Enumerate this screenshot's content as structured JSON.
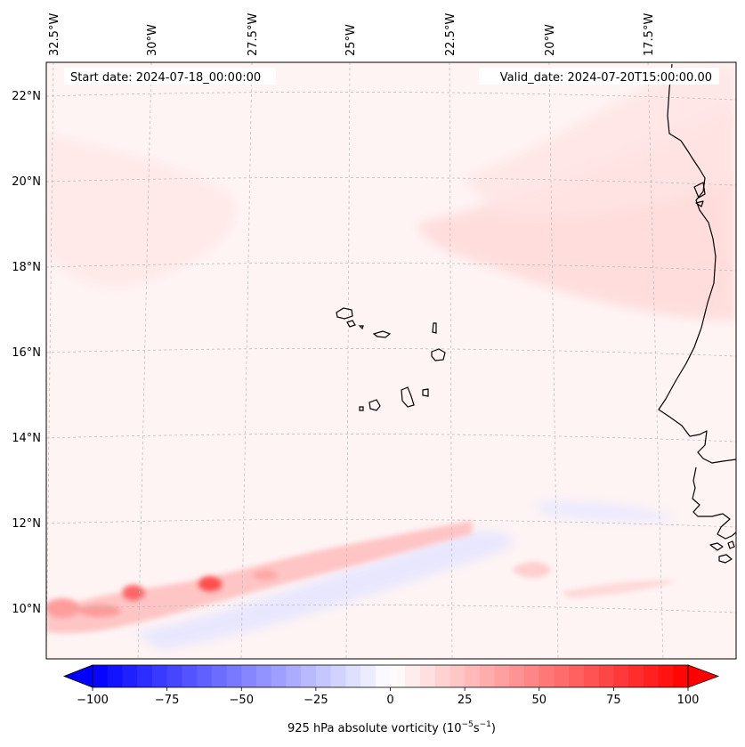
{
  "header": {
    "start_date": "Start date: 2024-07-18_00:00:00",
    "valid_date": "Valid_date: 2024-07-20T15:00:00.00"
  },
  "map": {
    "extent": {
      "lon": [
        -33,
        -15.7
      ],
      "lat": [
        8.9,
        22.8
      ]
    },
    "lon_labels": [
      "32.5°W",
      "30°W",
      "27.5°W",
      "25°W",
      "22.5°W",
      "20°W",
      "17.5°W"
    ],
    "lat_labels": [
      "22°N",
      "20°N",
      "18°N",
      "16°N",
      "14°N",
      "12°N",
      "10°N"
    ],
    "gridlines": true
  },
  "colorbar": {
    "ticks": [
      "−100",
      "−75",
      "−50",
      "−25",
      "0",
      "25",
      "50",
      "75",
      "100"
    ],
    "label_prefix": "925 hPa absolute vorticity (10",
    "label_exp1": "−5",
    "label_mid": "s",
    "label_exp2": "−1",
    "label_suffix": ")",
    "range": [
      -100,
      100
    ],
    "colormap": "bwr",
    "extend": "both"
  },
  "colors": {
    "low": "#0000ff",
    "mid": "#ffffff",
    "high": "#ff0000",
    "coast": "#000000"
  }
}
